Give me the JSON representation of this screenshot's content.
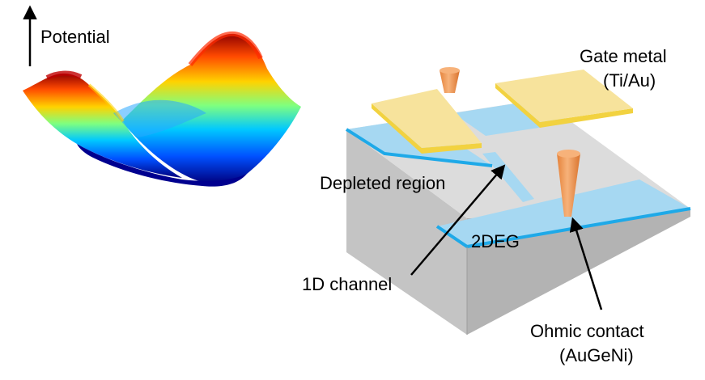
{
  "labels": {
    "potential": "Potential",
    "gate_metal_line1": "Gate metal",
    "gate_metal_line2": "(Ti/Au)",
    "depleted_region": "Depleted region",
    "two_deg": "2DEG",
    "one_d_channel": "1D channel",
    "ohmic_line1": "Ohmic contact",
    "ohmic_line2": "(AuGeNi)"
  },
  "colors": {
    "substrate_top": "#dcdcdc",
    "substrate_side": "#c8c8c8",
    "substrate_front": "#b7b7b7",
    "two_deg": "#a6d8f2",
    "two_deg_edge": "#1ea9e8",
    "gate_top": "#f7e39c",
    "gate_edge": "#f2d240",
    "contact": "#f0a15a",
    "colormap": [
      "#00007f",
      "#0050ff",
      "#00c8ff",
      "#7fff7f",
      "#ffd200",
      "#ff5a00",
      "#7f0000"
    ]
  }
}
